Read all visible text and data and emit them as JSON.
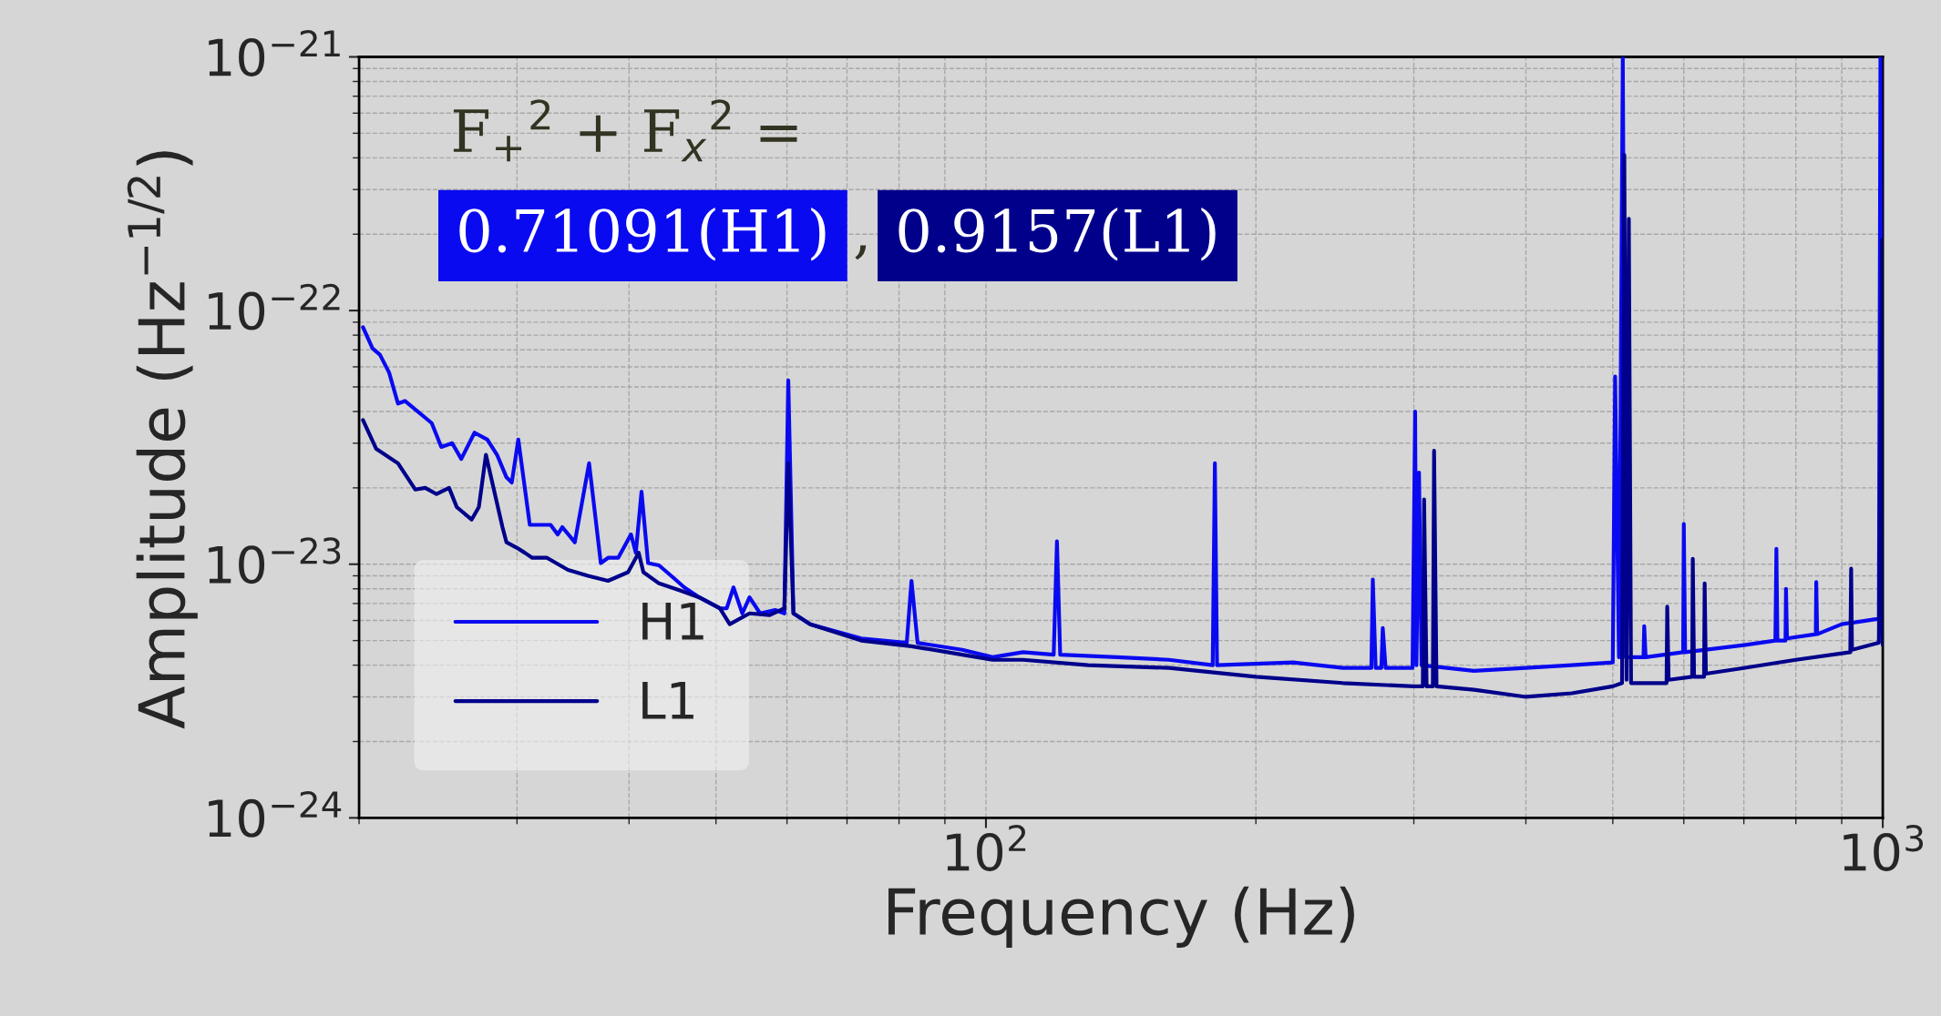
{
  "chart_data": {
    "type": "line",
    "xlabel": "Frequency (Hz)",
    "ylabel": "Amplitude (Hz$^{−1/2}$)",
    "log": "xy",
    "xlim": [
      20,
      1000
    ],
    "ylim": [
      1e-24,
      1e-21
    ],
    "xticks": [
      {
        "value": 100,
        "label": "10$^{2}$"
      },
      {
        "value": 1000,
        "label": "10$^{3}$"
      }
    ],
    "yticks": [
      {
        "value": 1e-24,
        "label": "10$^{−24}$"
      },
      {
        "value": 1e-23,
        "label": "10$^{−23}$"
      },
      {
        "value": 1e-22,
        "label": "10$^{−22}$"
      },
      {
        "value": 1e-21,
        "label": "10$^{−21}$"
      }
    ],
    "grid": true,
    "legend": "bottom left",
    "line_style": "solid",
    "marker": "none",
    "annotations": [
      "F$_{+}$$^{2}$ + F$_{x}$$^{2}$ =",
      "0.71091(H1)",
      ",",
      "0.9157(L1)"
    ],
    "series": [
      {
        "name": "H1",
        "color": "#0a0af0",
        "x": [
          20.2,
          20.7,
          21.1,
          21.6,
          22.1,
          22.5,
          24.1,
          24.7,
          25.4,
          26.0,
          26.9,
          27.8,
          28.5,
          29.2,
          29.6,
          30.1,
          31.0,
          32.7,
          33.3,
          33.7,
          34.8,
          36.1,
          37.2,
          37.9,
          38.9,
          40.2,
          40.7,
          41.3,
          42.0,
          43.2,
          44.9,
          46.1,
          47.9,
          50.5,
          51.4,
          52.3,
          53.5,
          54.5,
          56.0,
          58.2,
          59.6,
          60.2,
          61.0,
          63.7,
          72.6,
          81.6,
          82.6,
          83.9,
          94.1,
          101.7,
          110,
          119,
          120,
          121,
          140,
          160,
          179,
          180,
          181,
          220,
          250,
          269,
          270,
          272,
          276,
          277,
          279,
          299,
          301,
          302,
          304,
          306,
          350,
          400,
          450,
          500,
          503,
          508,
          513,
          517,
          541,
          542,
          544,
          599,
          600,
          602,
          700,
          759,
          761,
          763,
          779,
          780,
          782,
          842,
          843,
          845,
          900,
          990,
          994,
          997,
          1000
        ],
        "values": [
          8.6e-23,
          7.1e-23,
          6.7e-23,
          5.7e-23,
          4.3e-23,
          4.4e-23,
          3.6e-23,
          2.9e-23,
          3e-23,
          2.6e-23,
          3.3e-23,
          3.1e-23,
          2.7e-23,
          2.2e-23,
          2.1e-23,
          3.1e-23,
          1.43e-23,
          1.43e-23,
          1.31e-23,
          1.4e-23,
          1.22e-23,
          2.5e-23,
          1.01e-23,
          1.06e-23,
          1.06e-23,
          1.31e-23,
          1.11e-23,
          1.93e-23,
          1.01e-23,
          9.9e-24,
          8.8e-24,
          8.1e-24,
          7.4e-24,
          6.7e-24,
          6.7e-24,
          8.1e-24,
          6.4e-24,
          7.4e-24,
          6.4e-24,
          6.6e-24,
          6.4e-24,
          5.3e-23,
          6.4e-24,
          5.8e-24,
          5.1e-24,
          4.9e-24,
          8.6e-24,
          4.9e-24,
          4.6e-24,
          4.3e-24,
          4.5e-24,
          4.4e-24,
          1.23e-23,
          4.4e-24,
          4.3e-24,
          4.2e-24,
          4e-24,
          2.5e-23,
          4e-24,
          4.1e-24,
          3.9e-24,
          3.9e-24,
          8.7e-24,
          3.9e-24,
          3.9e-24,
          5.6e-24,
          3.9e-24,
          3.9e-24,
          4e-23,
          4e-24,
          2.3e-23,
          4e-24,
          3.8e-24,
          3.9e-24,
          4e-24,
          4.1e-24,
          5.5e-23,
          4.3e-24,
          1e-21,
          4.3e-24,
          4.3e-24,
          5.7e-24,
          4.3e-24,
          4.5e-24,
          1.44e-23,
          4.5e-24,
          4.8e-24,
          5e-24,
          1.15e-23,
          5e-24,
          5e-24,
          8e-24,
          5.1e-24,
          5.3e-24,
          8.5e-24,
          5.3e-24,
          5.8e-24,
          6.1e-24,
          1e-21,
          6.1e-24,
          6e-24
        ]
      },
      {
        "name": "L1",
        "color": "#00008b",
        "x": [
          20.2,
          20.9,
          22.1,
          23.1,
          23.7,
          24.4,
          25.2,
          25.7,
          26.7,
          27.2,
          27.7,
          28.9,
          29.2,
          30.0,
          30.6,
          31.2,
          32.4,
          34.2,
          36.0,
          37.9,
          39.9,
          41.0,
          41.5,
          43.2,
          45.5,
          47.9,
          50.5,
          51.8,
          54.5,
          57.4,
          59.6,
          60.2,
          61.0,
          63.7,
          72.6,
          82.6,
          94.1,
          101.7,
          110,
          130,
          160,
          200,
          250,
          300,
          307,
          308,
          310,
          315,
          316,
          318,
          350,
          400,
          450,
          500,
          512,
          515,
          518,
          521,
          524,
          574,
          575,
          577,
          613,
          614,
          616,
          632,
          633,
          635,
          700,
          800,
          920,
          922,
          924,
          990,
          998,
          1000
        ],
        "values": [
          3.7e-23,
          2.85e-23,
          2.5e-23,
          1.97e-23,
          2e-23,
          1.89e-23,
          2e-23,
          1.68e-23,
          1.5e-23,
          1.68e-23,
          2.7e-23,
          1.4e-23,
          1.22e-23,
          1.16e-23,
          1.11e-23,
          1.06e-23,
          1.06e-23,
          9.5e-24,
          9e-24,
          8.6e-24,
          9.3e-24,
          1.11e-23,
          9.3e-24,
          8.4e-24,
          7.9e-24,
          7.4e-24,
          6.7e-24,
          5.8e-24,
          6.4e-24,
          6.3e-24,
          6.7e-24,
          2.5e-23,
          6.4e-24,
          5.8e-24,
          5e-24,
          4.75e-24,
          4.4e-24,
          4.2e-24,
          4.2e-24,
          4e-24,
          3.9e-24,
          3.6e-24,
          3.4e-24,
          3.3e-24,
          3.3e-24,
          1.8e-23,
          3.3e-24,
          3.3e-24,
          2.8e-23,
          3.3e-24,
          3.2e-24,
          3e-24,
          3.1e-24,
          3.3e-24,
          3.4e-24,
          4.1e-22,
          3.5e-24,
          2.3e-22,
          3.4e-24,
          3.4e-24,
          6.8e-24,
          3.5e-24,
          3.6e-24,
          1.05e-23,
          3.6e-24,
          3.6e-24,
          8.4e-24,
          3.7e-24,
          3.9e-24,
          4.2e-24,
          4.5e-24,
          9.6e-24,
          4.6e-24,
          4.9e-24,
          1.9e-22,
          4.8e-24
        ]
      }
    ]
  }
}
